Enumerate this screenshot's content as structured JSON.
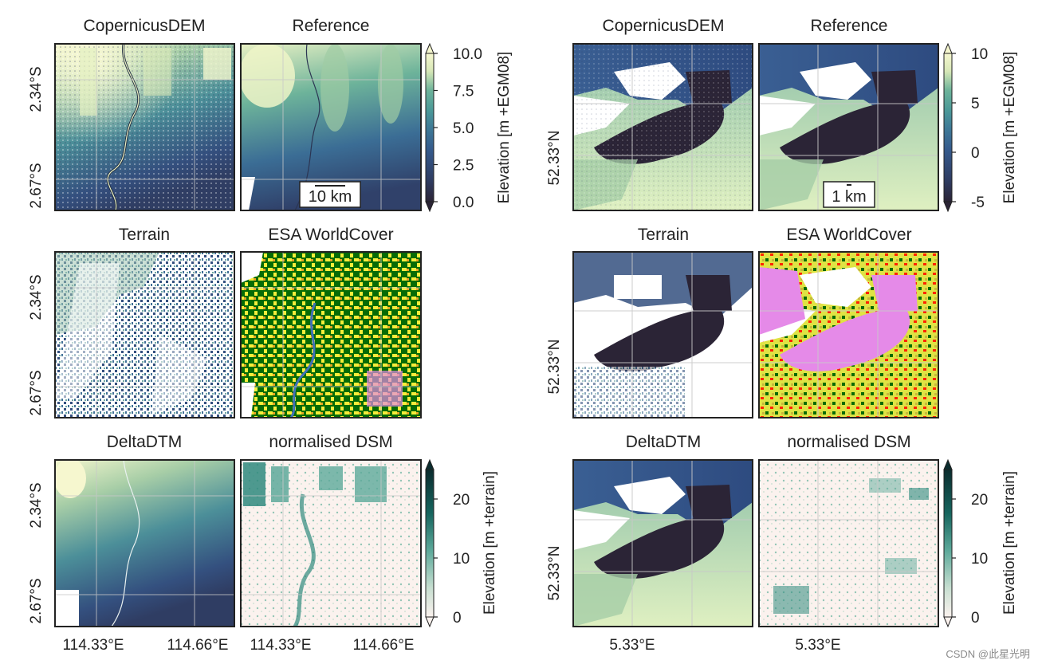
{
  "watermark": "CSDN @此星光明",
  "colors": {
    "frame": "#222222",
    "grid": "#c8c8c8",
    "elev_ramp": [
      "#2b2436",
      "#2f3d63",
      "#355a8c",
      "#3f7b97",
      "#4c9a98",
      "#6db39a",
      "#a5cda6",
      "#d7e7b7",
      "#f6f7cf"
    ],
    "ndsm_ramp": [
      "#fbf2ee",
      "#e7ecdc",
      "#c6ded0",
      "#93c5b5",
      "#5da99a",
      "#2f8a7e",
      "#17665f",
      "#0d4441",
      "#0b2c2e"
    ],
    "worldcover": {
      "tree": "#066b06",
      "cropland": "#f5ee3a",
      "shrub": "#e5a423",
      "built": "#ff0000",
      "wetland": "#e58ae8",
      "water": "#3e6fb8"
    }
  },
  "left_region": {
    "lat_ticks": [
      "2.34°S",
      "2.67°S"
    ],
    "lon_ticks": [
      "114.33°E",
      "114.66°E"
    ],
    "scale_bar": "10 km"
  },
  "right_region": {
    "lat_tick": "52.33°N",
    "lon_tick": "5.33°E",
    "scale_bar": "1 km"
  },
  "panel_titles": {
    "copdem": "CopernicusDEM",
    "reference": "Reference",
    "terrain": "Terrain",
    "worldcover": "ESA WorldCover",
    "deltadtm": "DeltaDTM",
    "ndsm": "normalised DSM"
  },
  "chart_data": [
    {
      "type": "heatmap",
      "name": "left_elevation_colorbar",
      "label": "Elevation [m +EGM08]",
      "range": [
        0,
        10
      ],
      "ticks": [
        "0.0",
        "2.5",
        "5.0",
        "7.5",
        "10.0"
      ],
      "extend": "both",
      "levels": 10
    },
    {
      "type": "heatmap",
      "name": "left_ndsm_colorbar",
      "label": "Elevation [m +terrain]",
      "range": [
        0,
        25
      ],
      "ticks": [
        "0",
        "10",
        "20"
      ],
      "extend": "both",
      "levels": 10
    },
    {
      "type": "heatmap",
      "name": "right_elevation_colorbar",
      "label": "Elevation [m +EGM08]",
      "range": [
        -5,
        10
      ],
      "ticks": [
        "-5",
        "0",
        "5",
        "10"
      ],
      "extend": "both",
      "levels": 15
    },
    {
      "type": "heatmap",
      "name": "right_ndsm_colorbar",
      "label": "Elevation [m +terrain]",
      "range": [
        0,
        25
      ],
      "ticks": [
        "0",
        "10",
        "20"
      ],
      "extend": "both",
      "levels": 10
    }
  ]
}
